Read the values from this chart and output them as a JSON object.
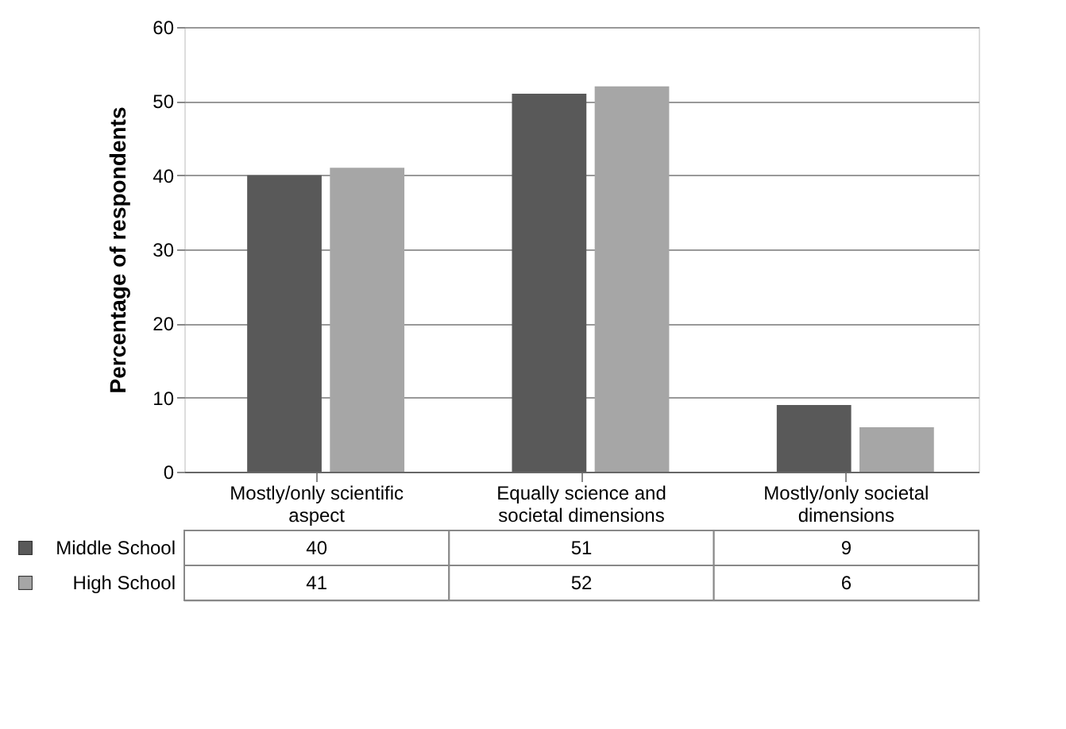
{
  "chart_data": {
    "type": "bar",
    "ylabel": "Percentage of respondents",
    "categories": [
      "Mostly/only scientific aspect",
      "Equally science and societal dimensions",
      "Mostly/only societal dimensions"
    ],
    "series": [
      {
        "name": "Middle School",
        "color": "#595959",
        "values": [
          40,
          51,
          9
        ]
      },
      {
        "name": "High School",
        "color": "#a6a6a6",
        "values": [
          41,
          52,
          6
        ]
      }
    ],
    "ylim": [
      0,
      60
    ],
    "yticks": [
      0,
      10,
      20,
      30,
      40,
      50,
      60
    ],
    "grid": "y",
    "legend": "bottom left",
    "data_labels": true
  }
}
